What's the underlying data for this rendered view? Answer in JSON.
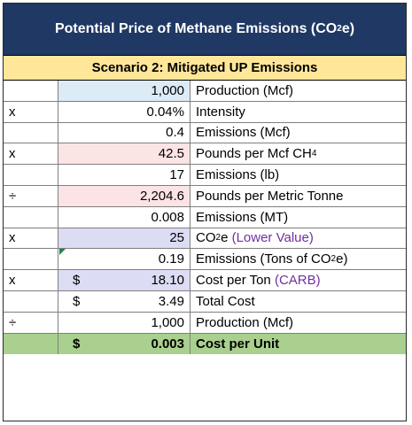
{
  "title": {
    "prefix": "Potential Price of Methane Emissions (CO",
    "sub": "2",
    "suffix": "e)"
  },
  "scenario": "Scenario 2: Mitigated UP Emissions",
  "rows": [
    {
      "op": "",
      "cur": "",
      "value": "1,000",
      "desc": "Production (Mcf)"
    },
    {
      "op": "x",
      "cur": "",
      "value": "0.04%",
      "desc": "Intensity"
    },
    {
      "op": "",
      "cur": "",
      "value": "0.4",
      "desc": "Emissions (Mcf)"
    },
    {
      "op": "x",
      "cur": "",
      "value": "42.5",
      "desc_prefix": "Pounds per Mcf CH",
      "desc_sub": "4"
    },
    {
      "op": "",
      "cur": "",
      "value": "17",
      "desc": "Emissions (lb)"
    },
    {
      "op": "÷",
      "cur": "",
      "value": "2,204.6",
      "desc": "Pounds per Metric Tonne"
    },
    {
      "op": "",
      "cur": "",
      "value": "0.008",
      "desc": "Emissions (MT)"
    },
    {
      "op": "x",
      "cur": "",
      "value": "25",
      "desc_prefix": "CO",
      "desc_sub": "2",
      "desc_suffix": "e ",
      "desc_note": "(Lower Value)"
    },
    {
      "op": "",
      "cur": "",
      "value": "0.19",
      "desc_prefix": "Emissions (Tons of CO",
      "desc_sub": "2",
      "desc_suffix": "e)"
    },
    {
      "op": "x",
      "cur": "$",
      "value": "18.10",
      "desc_prefix": "Cost per Ton ",
      "desc_note": "(CARB)"
    },
    {
      "op": "",
      "cur": "$",
      "value": "3.49",
      "desc": "Total Cost"
    },
    {
      "op": "÷",
      "cur": "",
      "value": "1,000",
      "desc": "Production (Mcf)"
    },
    {
      "op": "",
      "cur": "$",
      "value": "0.003",
      "desc": "Cost per Unit"
    }
  ],
  "colors": {
    "title_bg": "#1f3864",
    "scenario_bg": "#ffe699",
    "input_blue": "#ddebf7",
    "input_red": "#fce4e4",
    "input_purple": "#dcdcf4",
    "total_bg": "#a9d08e",
    "note_text": "#7030a0"
  }
}
